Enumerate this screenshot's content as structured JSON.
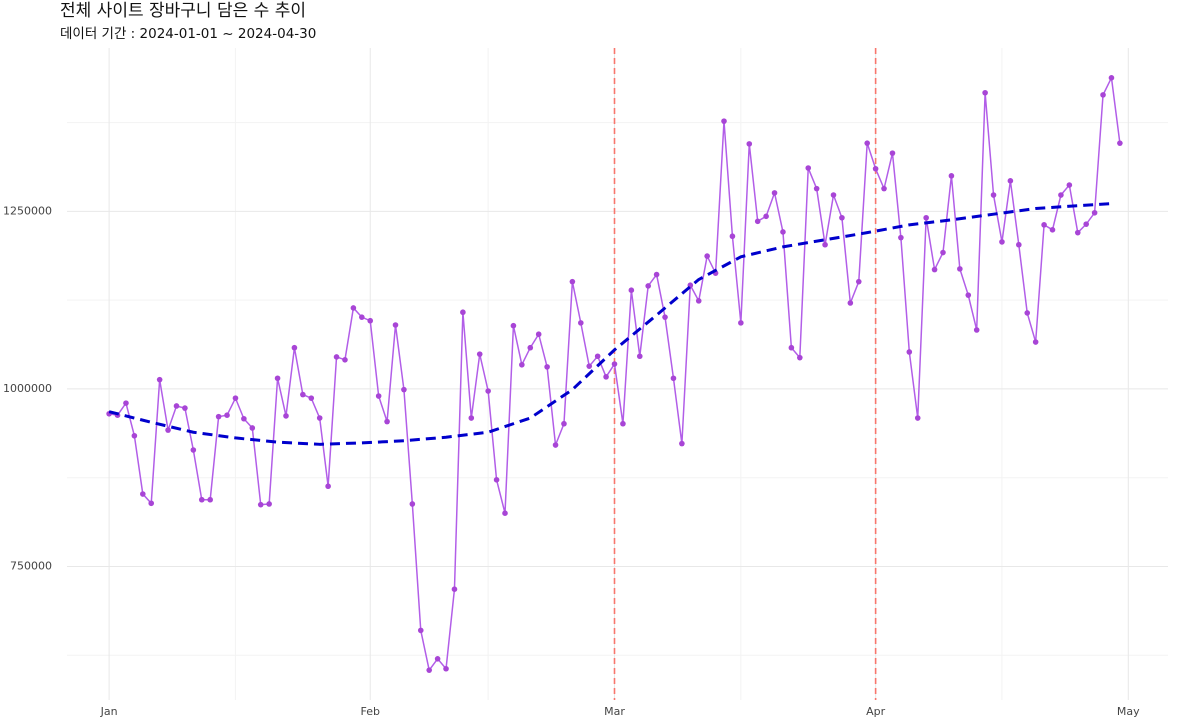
{
  "chart_data": {
    "type": "line",
    "title": "전체 사이트 장바구니 담은 수 추이",
    "subtitle": "데이터 기간 : 2024-01-01 ~ 2024-04-30",
    "x": [
      "2024-01-01",
      "2024-01-02",
      "2024-01-03",
      "2024-01-04",
      "2024-01-05",
      "2024-01-06",
      "2024-01-07",
      "2024-01-08",
      "2024-01-09",
      "2024-01-10",
      "2024-01-11",
      "2024-01-12",
      "2024-01-13",
      "2024-01-14",
      "2024-01-15",
      "2024-01-16",
      "2024-01-17",
      "2024-01-18",
      "2024-01-19",
      "2024-01-20",
      "2024-01-21",
      "2024-01-22",
      "2024-01-23",
      "2024-01-24",
      "2024-01-25",
      "2024-01-26",
      "2024-01-27",
      "2024-01-28",
      "2024-01-29",
      "2024-01-30",
      "2024-01-31",
      "2024-02-01",
      "2024-02-02",
      "2024-02-03",
      "2024-02-04",
      "2024-02-05",
      "2024-02-06",
      "2024-02-07",
      "2024-02-08",
      "2024-02-09",
      "2024-02-10",
      "2024-02-11",
      "2024-02-12",
      "2024-02-13",
      "2024-02-14",
      "2024-02-15",
      "2024-02-16",
      "2024-02-17",
      "2024-02-18",
      "2024-02-19",
      "2024-02-20",
      "2024-02-21",
      "2024-02-22",
      "2024-02-23",
      "2024-02-24",
      "2024-02-25",
      "2024-02-26",
      "2024-02-27",
      "2024-02-28",
      "2024-02-29",
      "2024-03-01",
      "2024-03-02",
      "2024-03-03",
      "2024-03-04",
      "2024-03-05",
      "2024-03-06",
      "2024-03-07",
      "2024-03-08",
      "2024-03-09",
      "2024-03-10",
      "2024-03-11",
      "2024-03-12",
      "2024-03-13",
      "2024-03-14",
      "2024-03-15",
      "2024-03-16",
      "2024-03-17",
      "2024-03-18",
      "2024-03-19",
      "2024-03-20",
      "2024-03-21",
      "2024-03-22",
      "2024-03-23",
      "2024-03-24",
      "2024-03-25",
      "2024-03-26",
      "2024-03-27",
      "2024-03-28",
      "2024-03-29",
      "2024-03-30",
      "2024-03-31",
      "2024-04-01",
      "2024-04-02",
      "2024-04-03",
      "2024-04-04",
      "2024-04-05",
      "2024-04-06",
      "2024-04-07",
      "2024-04-08",
      "2024-04-09",
      "2024-04-10",
      "2024-04-11",
      "2024-04-12",
      "2024-04-13",
      "2024-04-14",
      "2024-04-15",
      "2024-04-16",
      "2024-04-17",
      "2024-04-18",
      "2024-04-19",
      "2024-04-20",
      "2024-04-21",
      "2024-04-22",
      "2024-04-23",
      "2024-04-24",
      "2024-04-25",
      "2024-04-26",
      "2024-04-27",
      "2024-04-28",
      "2024-04-29",
      "2024-04-30"
    ],
    "values": [
      965000,
      963000,
      980000,
      934000,
      852000,
      839000,
      1013000,
      942000,
      976000,
      973000,
      914000,
      844000,
      844000,
      961000,
      963000,
      987000,
      958000,
      945000,
      837000,
      838000,
      1015000,
      962000,
      1058000,
      992000,
      987000,
      959000,
      863000,
      1045000,
      1041000,
      1114000,
      1101000,
      1096000,
      990000,
      954000,
      1090000,
      999000,
      838000,
      660000,
      604000,
      620000,
      606000,
      718000,
      1108000,
      959000,
      1049000,
      997000,
      872000,
      825000,
      1089000,
      1034000,
      1058000,
      1077000,
      1031000,
      921000,
      951000,
      1151000,
      1093000,
      1032000,
      1046000,
      1017000,
      1035000,
      951000,
      1139000,
      1046000,
      1145000,
      1161000,
      1101000,
      1015000,
      923000,
      1146000,
      1124000,
      1187000,
      1163000,
      1377000,
      1215000,
      1093000,
      1345000,
      1236000,
      1243000,
      1276000,
      1221000,
      1058000,
      1044000,
      1311000,
      1282000,
      1203000,
      1273000,
      1241000,
      1121000,
      1151000,
      1346000,
      1310000,
      1282000,
      1332000,
      1213000,
      1052000,
      959000,
      1241000,
      1168000,
      1192000,
      1300000,
      1169000,
      1132000,
      1083000,
      1417000,
      1273000,
      1207000,
      1293000,
      1203000,
      1107000,
      1066000,
      1231000,
      1224000,
      1273000,
      1287000,
      1220000,
      1232000,
      1248000,
      1414000,
      1438000,
      1346000
    ],
    "color": "#b25ee8",
    "trend": {
      "x": [
        "2024-01-01",
        "2024-01-06",
        "2024-01-11",
        "2024-01-16",
        "2024-01-21",
        "2024-01-26",
        "2024-01-31",
        "2024-02-05",
        "2024-02-10",
        "2024-02-15",
        "2024-02-20",
        "2024-02-25",
        "2024-03-01",
        "2024-03-06",
        "2024-03-11",
        "2024-03-16",
        "2024-03-21",
        "2024-03-26",
        "2024-03-31",
        "2024-04-05",
        "2024-04-10",
        "2024-04-15",
        "2024-04-20",
        "2024-04-25",
        "2024-04-29"
      ],
      "values": [
        968000,
        953000,
        939000,
        931000,
        925000,
        922000,
        924000,
        927000,
        932000,
        939000,
        959000,
        999000,
        1055000,
        1104000,
        1154000,
        1186000,
        1200000,
        1210000,
        1220000,
        1231000,
        1238000,
        1246000,
        1254000,
        1258000,
        1261000
      ],
      "color": "#0000cc"
    },
    "vlines": [
      "2024-03-01",
      "2024-04-01"
    ],
    "vline_color": "#f8766d",
    "xlim": [
      "2023-12-27",
      "2024-05-05"
    ],
    "xticks": [
      {
        "value": "2024-01-01",
        "label": "Jan"
      },
      {
        "value": "2024-02-01",
        "label": "Feb"
      },
      {
        "value": "2024-03-01",
        "label": "Mar"
      },
      {
        "value": "2024-04-01",
        "label": "Apr"
      },
      {
        "value": "2024-05-01",
        "label": "May"
      }
    ],
    "xminor": [
      "2024-01-16",
      "2024-02-15",
      "2024-03-16",
      "2024-04-16"
    ],
    "ylim": [
      562000,
      1480000
    ],
    "yticks": [
      750000,
      1000000,
      1250000
    ],
    "yminor": [
      625000,
      875000,
      1125000,
      1375000
    ],
    "grid": true
  }
}
